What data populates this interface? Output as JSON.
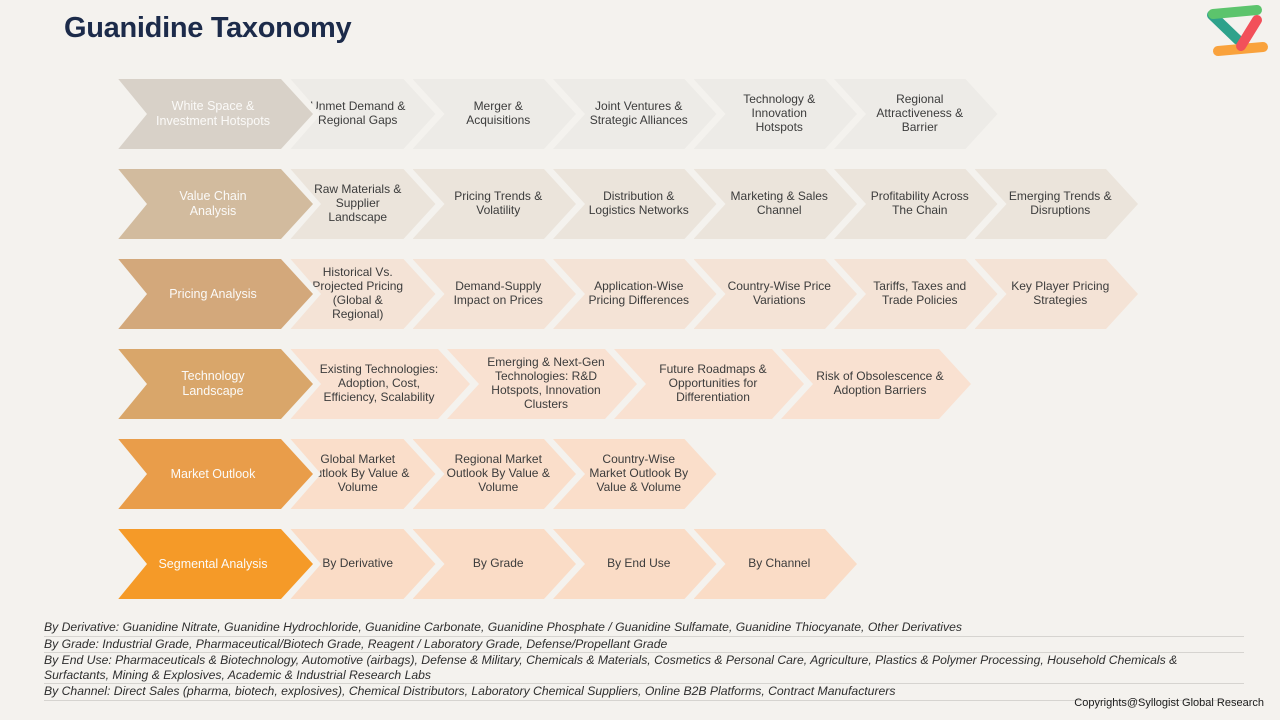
{
  "header": {
    "title": "Guanidine Taxonomy"
  },
  "logo": {
    "name": "syllogist-logo",
    "bar_colors": {
      "green": "#5cc46c",
      "teal": "#2ea28b",
      "red": "#f2505a",
      "orange": "#f9a23c"
    }
  },
  "taxonomy": {
    "rows": [
      {
        "lead": "White Space & Investment Hotspots",
        "lead_color": "#d8d1c8",
        "item_color": "#edebe7",
        "items": [
          "Unmet Demand & Regional Gaps",
          "Merger & Acquisitions",
          "Joint Ventures & Strategic Alliances",
          "Technology & Innovation Hotspots",
          "Regional Attractiveness & Barrier"
        ]
      },
      {
        "lead": "Value Chain Analysis",
        "lead_color": "#d2bb9e",
        "item_color": "#ebe4db",
        "items": [
          "Raw Materials & Supplier Landscape",
          "Pricing Trends & Volatility",
          "Distribution & Logistics Networks",
          "Marketing & Sales Channel",
          "Profitability Across The Chain",
          "Emerging Trends & Disruptions"
        ]
      },
      {
        "lead": "Pricing Analysis",
        "lead_color": "#d3a87b",
        "item_color": "#f4e3d6",
        "items": [
          "Historical Vs. Projected Pricing (Global & Regional)",
          "Demand-Supply Impact on Prices",
          "Application-Wise Pricing Differences",
          "Country-Wise Price Variations",
          "Tariffs, Taxes and Trade Policies",
          "Key Player Pricing Strategies"
        ]
      },
      {
        "lead": "Technology Landscape",
        "lead_color": "#d9a66a",
        "item_color": "#f9e1d1",
        "items": [
          "Existing Technologies: Adoption, Cost, Efficiency, Scalability",
          "Emerging & Next-Gen Technologies: R&D Hotspots, Innovation Clusters",
          "Future Roadmaps & Opportunities for Differentiation",
          "Risk of Obsolescence & Adoption Barriers"
        ]
      },
      {
        "lead": "Market Outlook",
        "lead_color": "#e99d4a",
        "item_color": "#fadeca",
        "items": [
          "Global Market Outlook By Value & Volume",
          "Regional Market Outlook By Value & Volume",
          "Country-Wise Market Outlook By Value & Volume"
        ]
      },
      {
        "lead": "Segmental Analysis",
        "lead_color": "#f59a28",
        "item_color": "#fadcc6",
        "items": [
          "By Derivative",
          "By Grade",
          "By End Use",
          "By Channel"
        ]
      }
    ]
  },
  "footnotes": [
    "By Derivative: Guanidine Nitrate, Guanidine Hydrochloride, Guanidine Carbonate, Guanidine Phosphate / Guanidine Sulfamate, Guanidine Thiocyanate, Other Derivatives",
    "By Grade: Industrial Grade, Pharmaceutical/Biotech Grade, Reagent / Laboratory Grade, Defense/Propellant Grade",
    "By End Use: Pharmaceuticals & Biotechnology, Automotive (airbags), Defense & Military, Chemicals & Materials, Cosmetics & Personal Care, Agriculture, Plastics & Polymer Processing, Household Chemicals & Surfactants, Mining & Explosives, Academic & Industrial Research Labs",
    "By Channel: Direct Sales (pharma, biotech, explosives), Chemical Distributors, Laboratory Chemical Suppliers, Online B2B Platforms, Contract Manufacturers"
  ],
  "footer": {
    "copyright": "Copyrights@Syllogist Global Research"
  }
}
